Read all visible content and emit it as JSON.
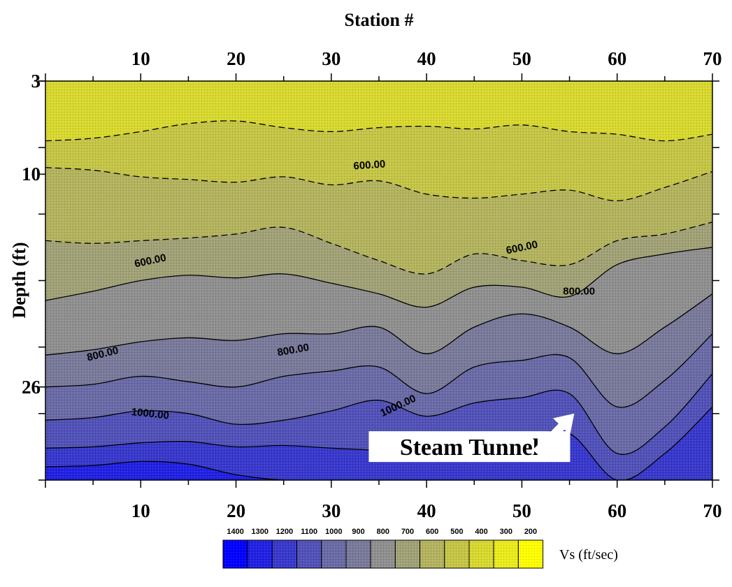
{
  "chart_data": {
    "type": "heatmap",
    "subtype": "filled contour",
    "title": "",
    "xlabel": "Station #",
    "ylabel": "Depth (ft)",
    "xlim": [
      0,
      70
    ],
    "ylim": [
      3,
      33
    ],
    "y_inverted": true,
    "x_ticks": [
      "10",
      "20",
      "30",
      "40",
      "50",
      "60",
      "70"
    ],
    "x_tick_values": [
      10,
      20,
      30,
      40,
      50,
      60,
      70
    ],
    "y_ticks": [
      "3",
      "10",
      "26"
    ],
    "y_tick_values": [
      3,
      10,
      26
    ],
    "contour_line_labels": [
      {
        "text": "600.00",
        "x": 34,
        "y": 9.3,
        "angle": -4
      },
      {
        "text": "600.00",
        "x": 11,
        "y": 16.5,
        "angle": -12
      },
      {
        "text": "600.00",
        "x": 50,
        "y": 15.5,
        "angle": -12
      },
      {
        "text": "800.00",
        "x": 6,
        "y": 23.5,
        "angle": -14
      },
      {
        "text": "800.00",
        "x": 26,
        "y": 23.2,
        "angle": -10
      },
      {
        "text": "800.00",
        "x": 56,
        "y": 18.8,
        "angle": 0
      },
      {
        "text": "1000.00",
        "x": 11,
        "y": 28.0,
        "angle": 6
      },
      {
        "text": "1000.00",
        "x": 37,
        "y": 27.4,
        "angle": -25
      }
    ],
    "legend": {
      "title": "Vs (ft/sec)",
      "position": "bottom",
      "levels": [
        "1400",
        "1300",
        "1200",
        "1100",
        "1000",
        "900",
        "800",
        "700",
        "600",
        "500",
        "400",
        "300",
        "200"
      ],
      "colors": [
        "#0000ff",
        "#2121e3",
        "#3838cc",
        "#5151b8",
        "#6a6aa7",
        "#79799a",
        "#8f8f8f",
        "#a1a177",
        "#b3b35e",
        "#c5c546",
        "#d8d82f",
        "#ebeb1c",
        "#ffff00"
      ]
    },
    "annotations": [
      {
        "text": "Steam Tunnel",
        "x": 44.5,
        "y": 30.8,
        "arrow_to": [
          55.5,
          28.0
        ]
      }
    ],
    "field_bands": [
      {
        "vs_range": "<500",
        "color": "#d8d82f"
      },
      {
        "vs_range": "500-600",
        "color": "#c5c546"
      },
      {
        "vs_range": "600-700",
        "color": "#b3b35e"
      },
      {
        "vs_range": "700-800",
        "color": "#a1a177"
      },
      {
        "vs_range": "800-900",
        "color": "#8f8f8f"
      },
      {
        "vs_range": "900-1000",
        "color": "#79799a"
      },
      {
        "vs_range": "1000-1100",
        "color": "#6a6aa7"
      },
      {
        "vs_range": "1100-1200",
        "color": "#5151b8"
      },
      {
        "vs_range": "1200-1300",
        "color": "#3838cc"
      },
      {
        "vs_range": ">1300",
        "color": "#2121e3"
      }
    ]
  }
}
